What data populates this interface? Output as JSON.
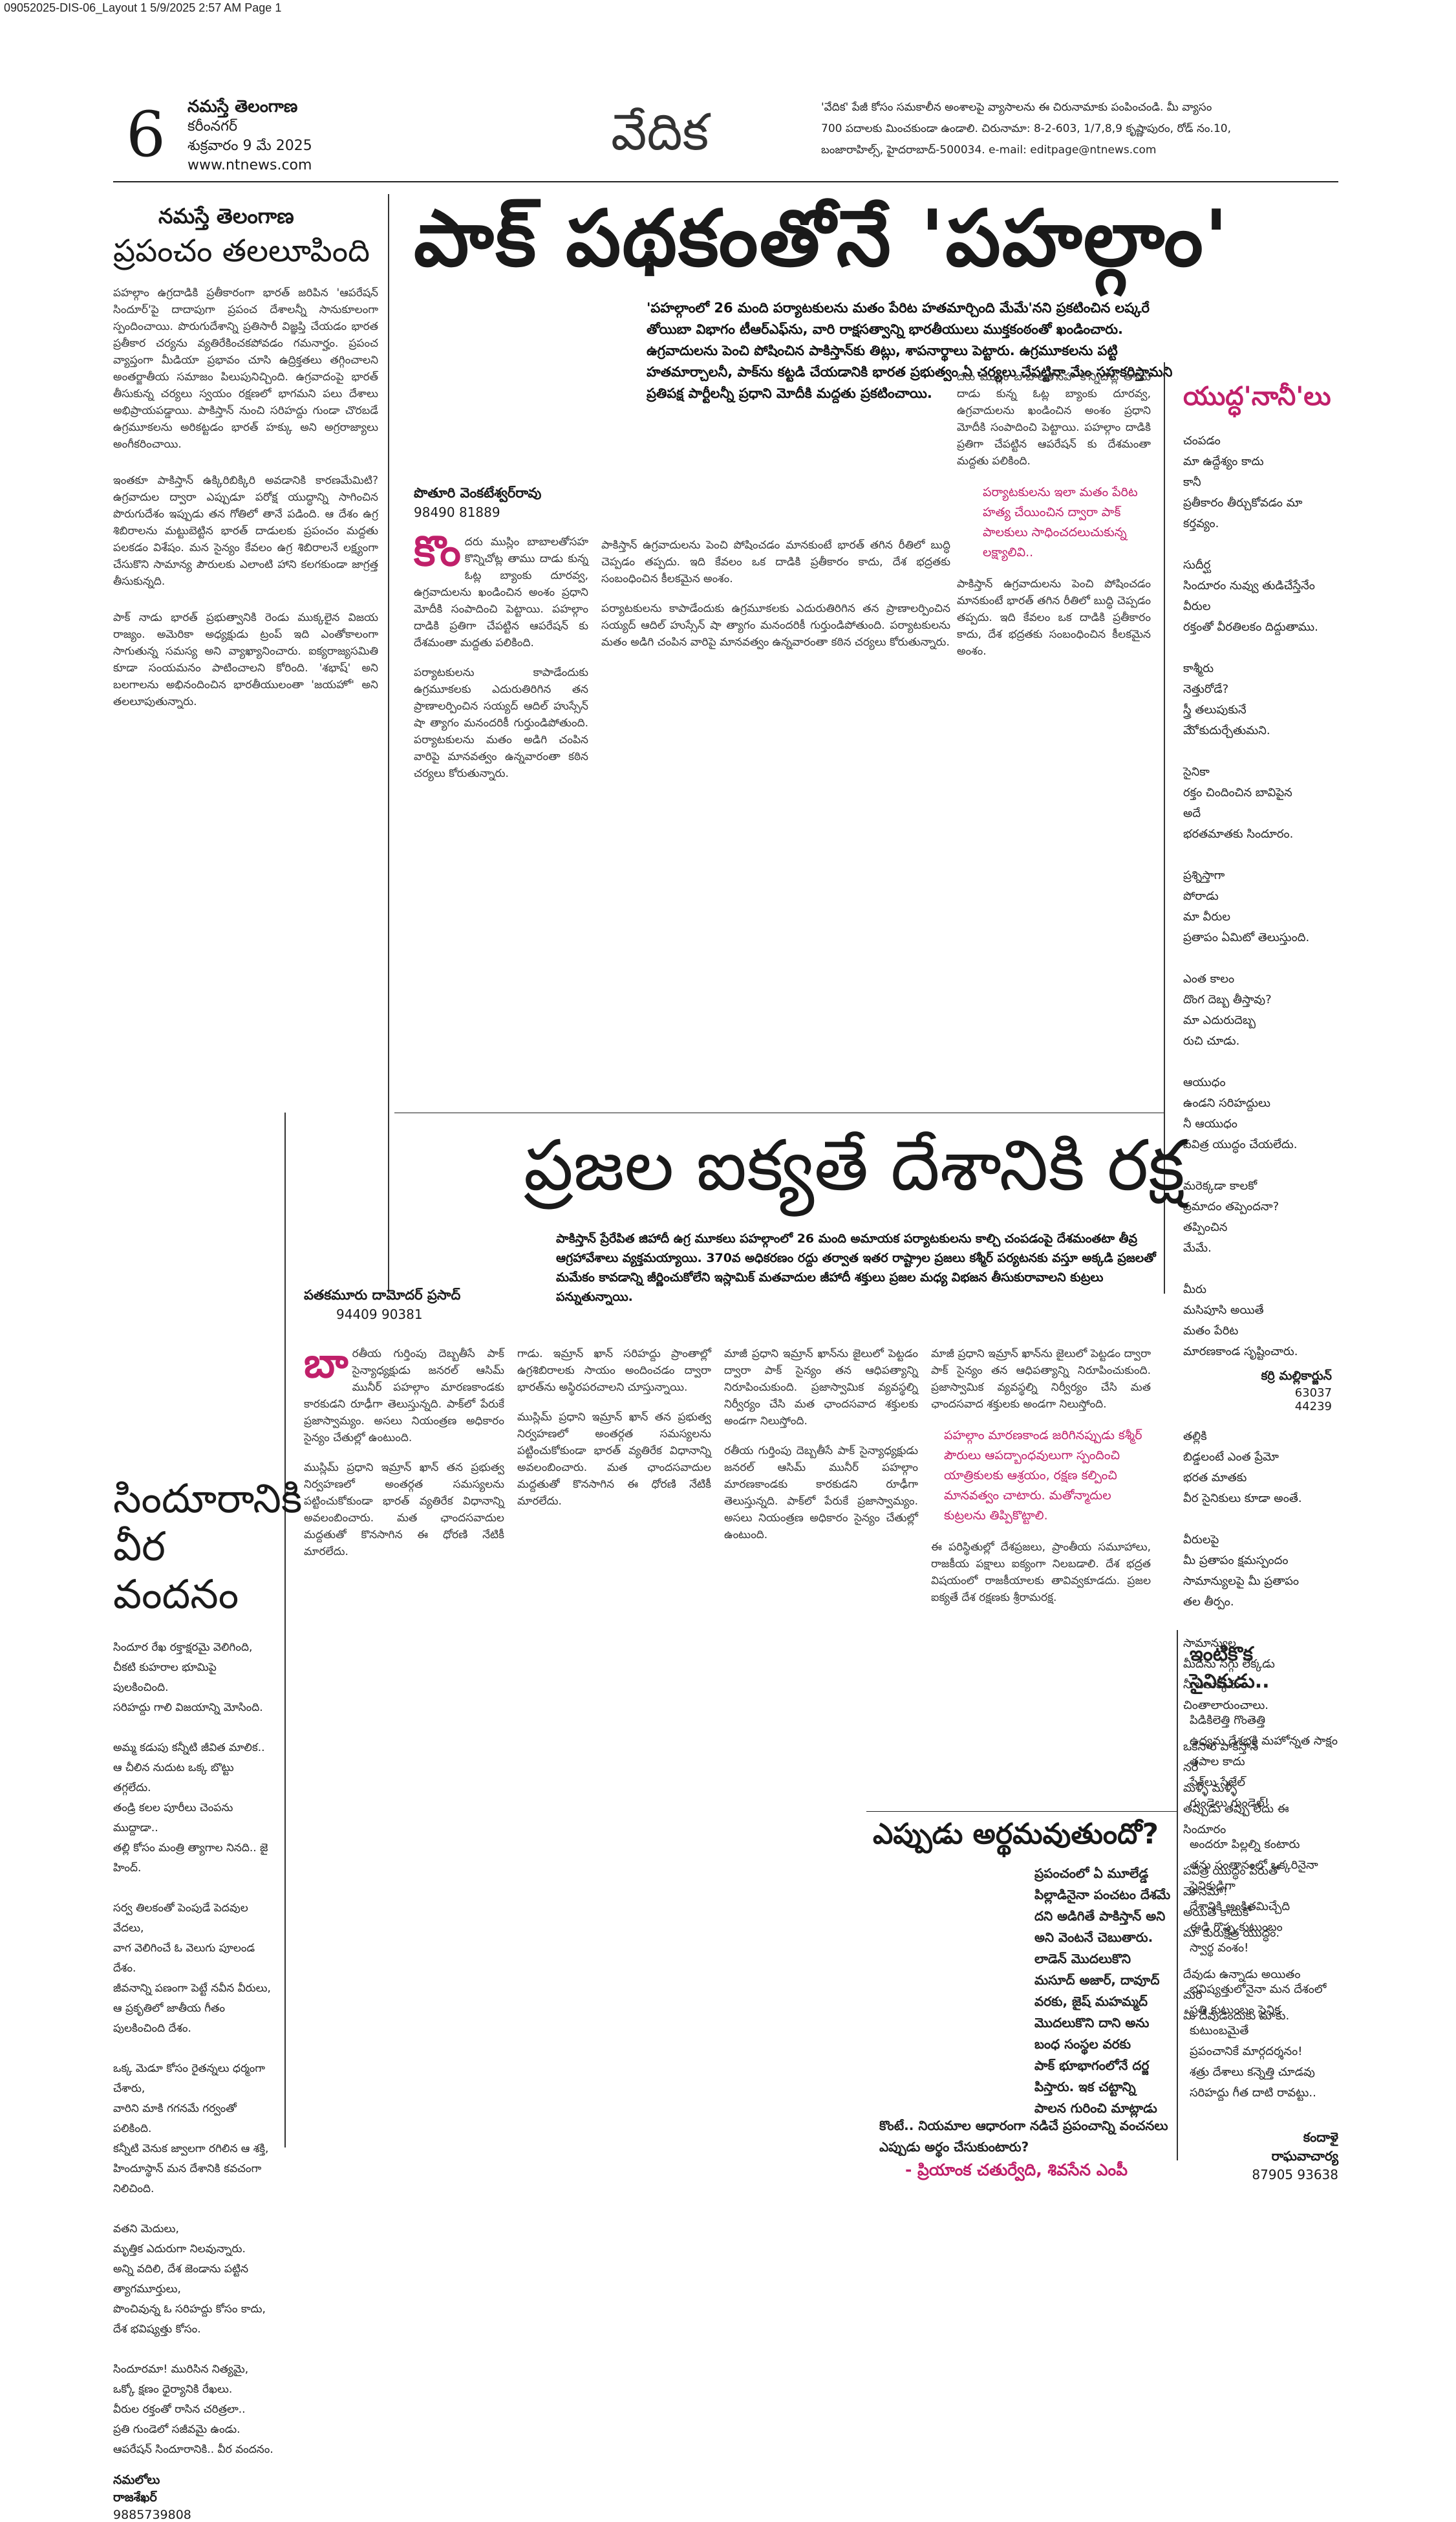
{
  "slug": "09052025-DIS-06_Layout 1  5/9/2025  2:57 AM  Page 1",
  "masthead": {
    "page_number": "6",
    "paper": "నమస్తే తెలంగాణ",
    "city": "కరీంనగర్",
    "date": "శుక్రవారం 9 మే 2025",
    "site": "www.ntnews.com",
    "section": "వేదిక"
  },
  "editorial_note": {
    "line1": "'వేదిక' పేజీ కోసం సమకాలీన అంశాలపై వ్యాసాలను ఈ చిరునామాకు పంపించండి. మీ వ్యాసం",
    "line2": "700 పదాలకు మించకుండా ఉండాలి. చిరునామా: 8-2-603, 1/7,8,9 కృష్ణాపురం, రోడ్ నం.10,",
    "line3": "బంజారాహిల్స్, హైదరాబాద్-500034. e-mail: editpage@ntnews.com"
  },
  "left_column": {
    "kicker": "నమస్తే తెలంగాణ",
    "title": "ప్రపంచం తలలూపింది",
    "paragraphs": [
      "పహల్గాం ఉగ్రదాడికి ప్రతీకారంగా భారత్ జరిపిన 'ఆపరేషన్ సిందూర్'పై దాదాపుగా ప్రపంచ దేశాలన్నీ సానుకూలంగా స్పందించాయి. పొరుగుదేశాన్ని ప్రతిసారీ విజ్ఞప్తి చేయడం భారత ప్రతీకార చర్యను వ్యతిరేకించకపోవడం గమనార్హం. ప్రపంచ వ్యాప్తంగా మీడియా ప్రభావం చూసి ఉద్రిక్తతలు తగ్గించాలని అంతర్జాతీయ సమాజం పిలుపునిచ్చింది. ఉగ్రవాదంపై భారత్ తీసుకున్న చర్యలు స్వయం రక్షణలో భాగమని పలు దేశాలు అభిప్రాయపడ్డాయి. పాకిస్తాన్ నుంచి సరిహద్దు గుండా చొరబడే ఉగ్రమూకలను అరికట్టడం భారత్ హక్కు అని అగ్రరాజ్యాలు అంగీకరించాయి.",
      "ఇంతకూ పాకిస్తాన్ ఉక్కిరిబిక్కిరి అవడానికి కారణమేమిటి? ఉగ్రవాదుల ద్వారా ఎప్పుడూ పరోక్ష యుద్ధాన్ని సాగించిన పొరుగుదేశం ఇప్పుడు తన గోతిలో తానే పడింది. ఆ దేశం ఉగ్ర శిబిరాలను మట్టుబెట్టిన భారత్ దాడులకు ప్రపంచం మద్దతు పలకడం విశేషం. మన సైన్యం కేవలం ఉగ్ర శిబిరాలనే లక్ష్యంగా చేసుకొని సామాన్య పౌరులకు ఎలాంటి హాని కలగకుండా జాగ్రత్త తీసుకున్నది.",
      "పాక్ నాడు భారత్ ప్రభుత్వానికి రెండు ముక్కలైన విజయ రాజ్యం. అమెరికా అధ్యక్షుడు ట్రంప్ ఇది ఎంతోకాలంగా సాగుతున్న సమస్య అని వ్యాఖ్యానించారు. ఐక్యరాజ్యసమితి కూడా సంయమనం పాటించాలని కోరింది. 'శభాష్' అని బలగాలను అభినందించిన భారతీయులంతా 'జయహో' అని తలలూపుతున్నారు."
    ]
  },
  "main_article": {
    "headline": "పాక్ పథకంతోనే 'పహల్గాం'",
    "deck": "'పహల్గాంలో 26 మంది పర్యాటకులను మతం పేరిట హతమార్చింది మేమే'నని ప్రకటించిన లష్కరే తోయిబా విభాగం టీఆర్ఎఫ్‌ను, వారి రాక్షసత్వాన్ని భారతీయులు ముక్తకంఠంతో ఖండించారు. ఉగ్రవాదులను పెంచి పోషించిన పాకిస్తాన్‌కు తిట్లు, శాపనార్థాలు పెట్టారు. ఉగ్రమూకలను పట్టి హతమార్చాలనీ, పాక్‌ను కట్టడి చేయడానికి భారత ప్రభుత్వం ఏ చర్యలు చేపట్టినా మేం సహకరిస్తామని ప్రతిపక్ష పార్టీలన్నీ ప్రధాని మోదీకి మద్దతు ప్రకటించాయి.",
    "author": "పొతూరి వెంకటేశ్వర్‌రావు",
    "phone": "98490 81889",
    "dropcap": "కొం",
    "paragraphs": [
      "దరు ముస్లిం బాబాలతోసహ కొన్నిచోట్ల తాము దాడు కున్న ఓట్ల బ్యాంకు దూరవ్వ, ఉగ్రవాదులను ఖండించిన అంశం ప్రధాని మోదీకి సంపాదించి పెట్టాయి. పహల్గాం దాడికి ప్రతిగా చేపట్టిన ఆపరేషన్ కు దేశమంతా మద్దతు పలికింది.",
      "పర్యాటకులను కాపాడేందుకు ఉగ్రమూకలకు ఎదురుతిరిగిన తన ప్రాణాలర్పించిన సయ్యద్ ఆదిల్ హుస్సేన్ షా త్యాగం మనందరికీ గుర్తుండిపోతుంది. పర్యాటకులను మతం అడిగి చంపిన వారిపై మానవత్వం ఉన్నవారంతా కఠిన చర్యలు కోరుతున్నారు.",
      "పాకిస్తాన్ ఉగ్రవాదులను పెంచి పోషించడం మానకుంటే భారత్ తగిన రీతిలో బుద్ధి చెప్పడం తప్పదు. ఇది కేవలం ఒక దాడికి ప్రతీకారం కాదు, దేశ భద్రతకు సంబంధించిన కీలకమైన అంశం."
    ],
    "pullquote": "పర్యాటకులను ఇలా మతం పేరిట హత్య చేయించిన ద్వారా పాక్ పాలకులు సాధించదలుచుకున్న లక్ష్యాలివి.."
  },
  "right_column_poem": {
    "title": "యుద్ధ'నానీ'లు",
    "lines": [
      "చంపడం",
      "మా ఉద్దేశ్యం కాదు",
      "కానీ",
      "ప్రతీకారం తీర్చుకోవడం మా కర్తవ్యం.",
      "",
      "సుదీర్ఘ",
      "సిందూరం నువ్వు తుడిచేస్తేనేం",
      "వీరుల",
      "రక్తంతో వీరతిలకం దిద్దుతాము.",
      "",
      "కాశ్మీరు",
      "నెత్తురోడే?",
      "స్త్రీ తలుపుకునే",
      "మేో కుదుర్చేతుమని.",
      "",
      "సైనికా",
      "రక్తం చిందించిన బావిపైన",
      "అదే",
      "భరతమాతకు సిందూరం.",
      "",
      "ప్రశ్నిస్తాగా",
      "పోరాడు",
      "మా వీరుల",
      "ప్రతాపం ఏమిటో తెలుస్తుంది.",
      "",
      "ఎంత కాలం",
      "దొంగ దెబ్బ తీస్తావు?",
      "మా ఎదురుదెబ్బ",
      "రుచి చూడు.",
      "",
      "ఆయుధం",
      "ఉండని సరిహద్దులు",
      "నీ ఆయుధం",
      "పవిత్ర యుద్ధం చేయలేదు.",
      "",
      "మరెక్కడా కాలకో",
      "ప్రమాదం తప్పెందనా?",
      "తప్పించిన",
      "మేమే.",
      "",
      "మీరు",
      "మసిపూసి అయితే",
      "మతం పేరిట",
      "మారణకాండ సృష్టించారు."
    ],
    "author_label": "కర్రి మల్లికార్జున్",
    "phones": [
      "63037",
      "44239"
    ],
    "more_lines": [
      "తల్లికి",
      "బిడ్డలంటే ఎంత ప్రేమో",
      "భరత మాతకు",
      "వీర సైనికులు కూడా అంతే.",
      "",
      "వీరులపై",
      "మీ ప్రతాపం క్షమస్పందం",
      "సామాన్యులపై మీ ప్రతాపం",
      "తల తీర్పం.",
      "",
      "సామాన్యుల",
      "మీదను సిగ్గు లేక్కడు",
      "నీ బలుక్కను",
      "చింతాలారుంచాలు.",
      "",
      "ఒకసారి పాకిస్తాన్",
      "నరే",
      "మళ్ళీ మళ్ళీ",
      "తప్పుడు తప్పు లేదు ఈ సిందూరం",
      "",
      "పవిత్ర యుద్ధం పేరుతో",
      "మోసమా!",
      "అయితే కాదుకో",
      "మా కురుక్షేత్ర యుద్ధం.",
      "",
      "దేవుడు ఉన్నాడు అయితం",
      "మరి",
      "మీ దేవుడెందుకు మాకు."
    ],
    "author2": "కర్రి మల్లికార్జున్"
  },
  "second_article": {
    "headline": "ప్రజల ఐక్యతే దేశానికి రక్ష",
    "deck": "పాకిస్తాన్ ప్రేరేపిత జిహాదీ ఉగ్ర మూకలు పహల్గాంలో 26 మంది అమాయక పర్యాటకులను కాల్చి చంపడంపై దేశమంతటా తీవ్ర ఆగ్రహావేశాలు వ్యక్తమయ్యాయి. 370వ అధికరణం రద్దు తర్వాత ఇతర రాష్ట్రాల ప్రజలు కశ్మీర్ పర్యటనకు వస్తూ అక్కడి ప్రజలతో మమేకం కావడాన్ని జీర్ణించుకోలేని ఇస్లామిక్ మతవాదుల జీహాదీ శక్తులు ప్రజల మధ్య విభజన తీసుకురావాలని కుట్రలు పన్నుతున్నాయి.",
    "author": "పతకమూరు దామోదర్ ప్రసాద్",
    "phone": "94409 90381",
    "dropcap": "బా",
    "paragraphs": [
      "రతీయ గుర్తింపు దెబ్బతీసే పాక్ సైన్యాధ్యక్షుడు జనరల్ ఆసిమ్ మునీర్ పహల్గాం మారణకాండకు కారకుడని రూఢీగా తెలుస్తున్నది. పాక్‌లో పేరుకే ప్రజాస్వామ్యం. అసలు నియంత్రణ అధికారం సైన్యం చేతుల్లో ఉంటుంది.",
      "ముస్లిమ్ ప్రధాని ఇమ్రాన్ ఖాన్ తన ప్రభుత్వ నిర్వహణలో అంతర్గత సమస్యలను పట్టించుకోకుండా భారత్ వ్యతిరేక విధానాన్ని అవలంబించారు. మత ఛాందసవాదుల మద్దతుతో కొనసాగిన ఈ ధోరణి నేటికీ మారలేదు.",
      "గాడు. ఇమ్రాన్ ఖాన్ సరిహద్దు ప్రాంతాల్లో ఉగ్రశిబిరాలకు సాయం అందించడం ద్వారా భారత్‌ను అస్థిరపరచాలని చూస్తున్నాయి.",
      "మాజీ ప్రధాని ఇమ్రాన్ ఖాన్‌ను జైలులో పెట్టడం ద్వారా పాక్ సైన్యం తన ఆధిపత్యాన్ని నిరూపించుకుంది. ప్రజాస్వామిక వ్యవస్థల్ని నిర్వీర్యం చేసి మత ఛాందసవాద శక్తులకు అండగా నిలుస్తోంది.",
      "ఈ పరిస్థితుల్లో దేశప్రజలు, ప్రాంతీయ సమూహాలు, రాజకీయ పక్షాలు ఐక్యంగా నిలబడాలి. దేశ భద్రత విషయంలో రాజకీయాలకు తావివ్వకూడదు. ప్రజల ఐక్యతే దేశ రక్షణకు శ్రీరామరక్ష."
    ],
    "pullquote": "పహల్గాం మారణకాండ జరిగినప్పుడు కశ్మీర్ పౌరులు ఆపద్బాంధవులుగా స్పందించి యాత్రికులకు ఆశ్రయం, రక్షణ కల్పించి మానవత్వం చాటారు. మతోన్మాదుల కుట్రలను తిప్పికొట్టాలి."
  },
  "tribute_poem": {
    "title": "సిందూరానికి వీర వందనం",
    "lines": [
      "సిందూర రేఖ రక్తాక్షరమై వెలిగింది,",
      "చీకటి కుహరాల భూమిపై పులకించింది.",
      "సరిహద్దు గాలి విజయాన్ని మోసింది.",
      "",
      "అమ్మ కడుపు కన్నీటి జీవిత మాలిక..",
      "ఆ చీలిన నుదుట ఒక్క బొట్టు తగ్గలేదు.",
      "తండ్రి కలల పూరీలు చెంపను ముద్దాడా..",
      "తల్లి కోసం మంత్రి త్యాగాల నినది.. జై హింద్.",
      "",
      "సర్వ తిలకంతో పెంపుడే పెదవుల వేదలు,",
      "వాగ వెలిగించే ఓ వెలుగు పూలండ దేశం.",
      "జీవనాన్ని పణంగా పెట్టే నవీన వీరులు,",
      "ఆ ప్రకృతిలో జాతీయ గీతం పులకించింది దేశం.",
      "",
      "ఒక్క మెడూ కోసం రైతన్నలు ధర్మంగా చేశారు,",
      "వారిని మాకి గగనమే గర్వంతో పలికింది.",
      "కన్నీటి వెనుక జ్వాలగా రగిలిన ఆ శక్తి,",
      "హిందూస్థాన్ మన దేశానికి కవచంగా నిలిచింది.",
      "",
      "వతని మెదులు,",
      "మృత్తిక ఎదురుగా నిలవున్నారు.",
      "అన్ని వదిలి, దేశ జెండాను పట్టిన త్యాగమూర్తులు,",
      "పొంచివున్న ఓ సరిహద్దు కోసం కాదు,",
      "దేశ భవిష్యత్తు కోసం.",
      "",
      "సిందూరమా! మురిసిన నిత్యమై,",
      "ఒక్కో క్షణం ధైర్యానికి రేఖలు.",
      "వీరుల రక్తంతో రాసిన చరిత్రలా..",
      "ప్రతి గుండెలో సజీవమై ఉండు.",
      "ఆపరేషన్ సిందూరానికి.. వీర వందనం."
    ],
    "author_name": "నమలోలు",
    "author_surname": "రాజశేఖర్",
    "phone": "9885739808"
  },
  "quote_box": {
    "title": "ఎప్పుడు అర్థమవుతుందో?",
    "lines": [
      "ప్రపంచంలో ఏ మూలేడ్డ",
      "పిల్లాడినైనా పంచటం దేశమే",
      "దని అడిగితే పాకిస్తాన్ అని",
      "అని వెంటనే చెబుతారు.",
      "లాడెన్ మొదలుకొని",
      "మసూద్ అజార్, దావూద్",
      "వరకు, జైష్ మహమ్మద్",
      "మొదలుకొని దాని అను",
      "బంధ సంస్థల వరకు",
      "పాక్ భూభాగంలోనే దర్జ",
      "పిస్తారు. ఇక చట్టాన్ని",
      "పాలన గురించి మాట్లాడు"
    ],
    "closing": "కొంటే.. నియమాల ఆధారంగా నడిచే ప్రపంచాన్ని వంచనలు ఎప్పుడు అర్థం చేసుకుంటారు?",
    "attribution": "- ప్రియాంక చతుర్వేది, శివసేన ఎంపీ"
  },
  "soldier_poem": {
    "title": "ఇంటికొక సైనికుడు..",
    "lines": [
      "పిడికిలెత్తి గొంతెత్తి",
      "ఉద్యమ దేశభక్తి మహోన్నత సాక్షం తపాల కాదు",
      "పేశ్‌లు సేజేల్",
      "గుండెలు గుండెల్!",
      "",
      "అందరూ పిల్లల్ని కంటారు",
      "తను సంతానంలో ఒక్కరినైనా సైనికుడిగా",
      "దేశానికి అంకితమిచ్చేది",
      "ఈడి గొప్ప కుటుంబం",
      "స్వార్థ వంశం!",
      "",
      "భవిష్యత్తులోనైనా మన దేశంలో",
      "ప్రతి కుటుంబం సైనిక కుటుంబమైతే",
      "ప్రపంచానికే మార్గదర్శనం!",
      "శత్రు దేశాలు కన్నెత్తి చూడవు",
      "సరిహద్దు గీత దాటి రావట్టు.."
    ],
    "author_name": "కందాళై",
    "author_surname": "రాఘవాచార్య",
    "phone": "87905 93638"
  }
}
